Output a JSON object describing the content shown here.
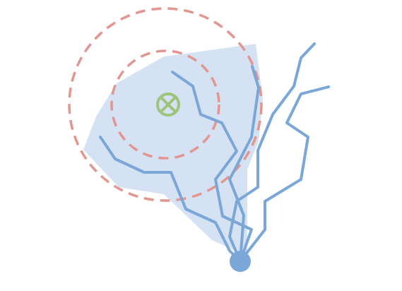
{
  "colors": {
    "background": "#ffffff",
    "area_fill": "#d5e2f3",
    "path_stroke": "#7ba7d8",
    "origin_fill": "#7ba7d8",
    "ring_stroke": "#e2968f",
    "target_stroke": "#9cc47a"
  },
  "icons": {
    "target": "circled-x-icon",
    "origin": "origin-dot"
  }
}
